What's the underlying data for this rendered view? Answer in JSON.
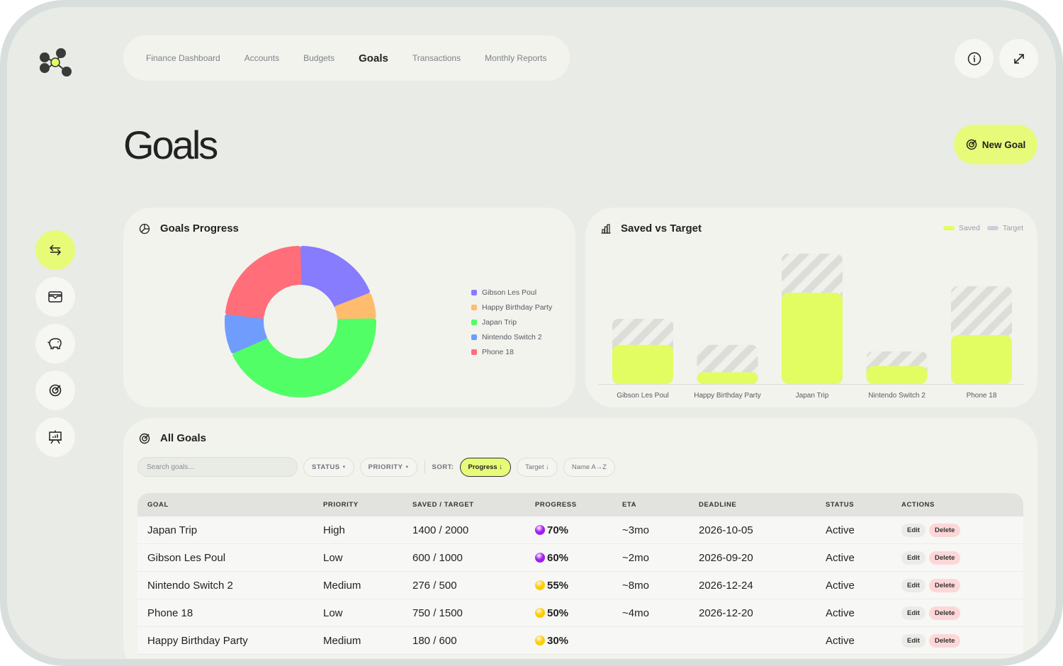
{
  "colors": {
    "accent": "#e7fb78",
    "bar_saved": "#e2fd62",
    "bar_target_stripe": "#dcddd7",
    "delete_bg": "#fdd7d7",
    "dot_purple": "#a21cf0",
    "dot_yellow": "#ffcc00"
  },
  "topnav": {
    "items": [
      {
        "label": "Finance Dashboard",
        "active": false
      },
      {
        "label": "Accounts",
        "active": false
      },
      {
        "label": "Budgets",
        "active": false
      },
      {
        "label": "Goals",
        "active": true
      },
      {
        "label": "Transactions",
        "active": false
      },
      {
        "label": "Monthly Reports",
        "active": false
      }
    ],
    "info_icon": "info-icon",
    "expand_icon": "expand-icon"
  },
  "sidebar": {
    "items": [
      {
        "icon": "transfer-arrows-icon",
        "active": true
      },
      {
        "icon": "wallet-icon",
        "active": false
      },
      {
        "icon": "piggy-bank-icon",
        "active": false
      },
      {
        "icon": "target-icon",
        "active": false
      },
      {
        "icon": "presentation-chart-icon",
        "active": false
      }
    ]
  },
  "page": {
    "title": "Goals",
    "new_goal_label": "New Goal"
  },
  "chart_data": [
    {
      "type": "pie",
      "title": "Goals Progress",
      "donut": true,
      "legend_position": "right",
      "slices": [
        {
          "label": "Gibson Les Poul",
          "value": 600,
          "color": "#877cfd"
        },
        {
          "label": "Happy Birthday Party",
          "value": 180,
          "color": "#ffbc6e"
        },
        {
          "label": "Japan Trip",
          "value": 1400,
          "color": "#52fe66"
        },
        {
          "label": "Nintendo Switch 2",
          "value": 276,
          "color": "#709cfd"
        },
        {
          "label": "Phone 18",
          "value": 750,
          "color": "#ff6e79"
        }
      ]
    },
    {
      "type": "bar",
      "title": "Saved vs Target",
      "legend_position": "top-right",
      "categories": [
        "Gibson Les Poul",
        "Happy Birthday Party",
        "Japan Trip",
        "Nintendo Switch 2",
        "Phone 18"
      ],
      "series": [
        {
          "name": "Saved",
          "values": [
            600,
            180,
            1400,
            276,
            750
          ],
          "color": "#e2fd62"
        },
        {
          "name": "Target",
          "values": [
            1000,
            600,
            2000,
            500,
            1500
          ],
          "color": "#cdcdd8"
        }
      ],
      "ylim": [
        0,
        2000
      ],
      "grid": false
    }
  ],
  "goals": {
    "title": "All Goals",
    "search_placeholder": "Search goals...",
    "filters": {
      "status": "STATUS",
      "priority": "PRIORITY"
    },
    "sort_label": "SORT:",
    "sort_options": [
      {
        "label": "Progress ↓",
        "selected": true
      },
      {
        "label": "Target ↓",
        "selected": false
      },
      {
        "label": "Name A→Z",
        "selected": false
      }
    ],
    "columns": [
      "GOAL",
      "PRIORITY",
      "SAVED / TARGET",
      "PROGRESS",
      "ETA",
      "DEADLINE",
      "STATUS",
      "ACTIONS"
    ],
    "edit_label": "Edit",
    "delete_label": "Delete",
    "rows": [
      {
        "goal": "Japan Trip",
        "priority": "High",
        "saved_target": "1400 / 2000",
        "progress": "70%",
        "progress_dot": "purple",
        "eta": "~3mo",
        "deadline": "2026-10-05",
        "status": "Active"
      },
      {
        "goal": "Gibson Les Poul",
        "priority": "Low",
        "saved_target": "600 / 1000",
        "progress": "60%",
        "progress_dot": "purple",
        "eta": "~2mo",
        "deadline": "2026-09-20",
        "status": "Active"
      },
      {
        "goal": "Nintendo Switch 2",
        "priority": "Medium",
        "saved_target": "276 / 500",
        "progress": "55%",
        "progress_dot": "yellow",
        "eta": "~8mo",
        "deadline": "2026-12-24",
        "status": "Active"
      },
      {
        "goal": "Phone 18",
        "priority": "Low",
        "saved_target": "750 / 1500",
        "progress": "50%",
        "progress_dot": "yellow",
        "eta": "~4mo",
        "deadline": "2026-12-20",
        "status": "Active"
      },
      {
        "goal": "Happy Birthday Party",
        "priority": "Medium",
        "saved_target": "180 / 600",
        "progress": "30%",
        "progress_dot": "yellow",
        "eta": "",
        "deadline": "",
        "status": "Active"
      }
    ]
  }
}
